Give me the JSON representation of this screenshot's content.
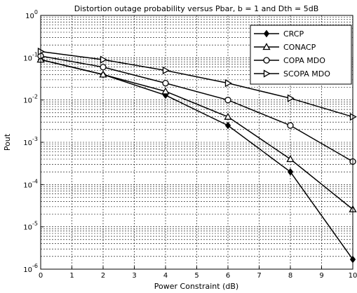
{
  "chart_data": {
    "type": "line",
    "title": "Distortion outage probability versus Pbar, b = 1 and Dth = 5dB",
    "xlabel": "Power Constraint (dB)",
    "ylabel": "Pout",
    "xscale": "linear",
    "yscale": "log",
    "xlim": [
      0,
      10
    ],
    "ylim": [
      1e-06,
      1
    ],
    "x_ticks": [
      "0",
      "1",
      "2",
      "3",
      "4",
      "5",
      "6",
      "7",
      "8",
      "9",
      "10"
    ],
    "y_ticks": [
      "10^0",
      "10^-1",
      "10^-2",
      "10^-3",
      "10^-4",
      "10^-5",
      "10^-6"
    ],
    "grid": true,
    "legend_position": "top-right",
    "x": [
      0,
      2,
      4,
      6,
      8,
      10
    ],
    "series": [
      {
        "name": "CRCP",
        "marker": "diamond",
        "values": [
          0.09,
          0.04,
          0.013,
          0.0025,
          0.0002,
          1.7e-06
        ]
      },
      {
        "name": "CONACP",
        "marker": "triangle-up",
        "values": [
          0.09,
          0.04,
          0.016,
          0.004,
          0.0004,
          2.6e-05
        ]
      },
      {
        "name": "COPA MDO",
        "marker": "circle",
        "values": [
          0.11,
          0.06,
          0.025,
          0.01,
          0.0025,
          0.00035
        ]
      },
      {
        "name": "SCOPA MDO",
        "marker": "triangle-right",
        "values": [
          0.14,
          0.09,
          0.05,
          0.025,
          0.011,
          0.004
        ]
      }
    ]
  }
}
